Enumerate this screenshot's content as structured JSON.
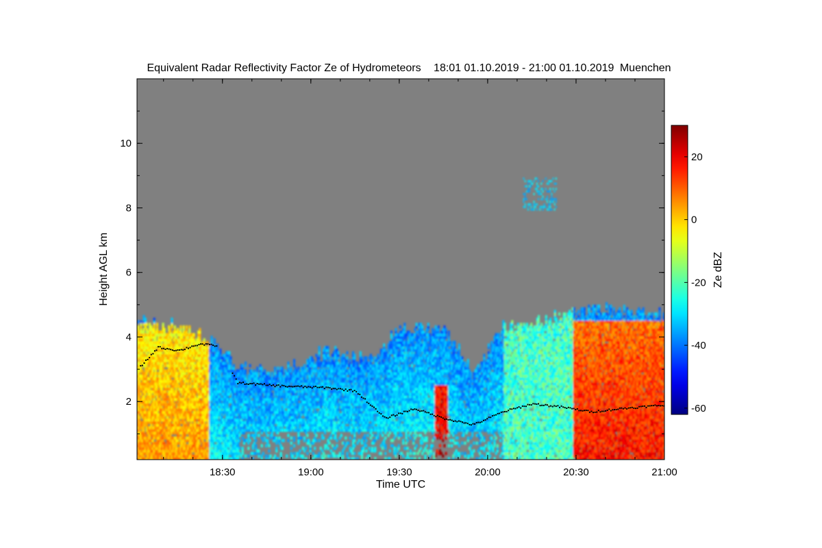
{
  "chart_data": {
    "type": "heatmap",
    "title": "Equivalent Radar Reflectivity Factor Ze of Hydrometeors",
    "time_range": "18:01 01.10.2019 - 21:00 01.10.2019",
    "location": "Muenchen",
    "xlabel": "Time UTC",
    "ylabel": "Height AGL km",
    "xlim": [
      "18:01",
      "21:00"
    ],
    "x_ticks": [
      "18:30",
      "19:00",
      "19:30",
      "20:00",
      "20:30",
      "21:00"
    ],
    "ylim": [
      0.2,
      12
    ],
    "y_ticks": [
      2,
      4,
      6,
      8,
      10
    ],
    "background_color": "#808080",
    "colorbar": {
      "label": "Ze dBZ",
      "range": [
        -62,
        30
      ],
      "ticks": [
        -60,
        -40,
        -20,
        0,
        20
      ],
      "colormap": "jet"
    },
    "echo_tops": [
      {
        "time": "18:01",
        "top_km": 4.4
      },
      {
        "time": "18:15",
        "top_km": 4.3
      },
      {
        "time": "18:28",
        "top_km": 3.7
      },
      {
        "time": "18:35",
        "top_km": 3.0
      },
      {
        "time": "18:50",
        "top_km": 2.9
      },
      {
        "time": "19:05",
        "top_km": 3.5
      },
      {
        "time": "19:20",
        "top_km": 3.2
      },
      {
        "time": "19:30",
        "top_km": 4.2
      },
      {
        "time": "19:45",
        "top_km": 4.2
      },
      {
        "time": "19:55",
        "top_km": 2.8
      },
      {
        "time": "20:05",
        "top_km": 4.3
      },
      {
        "time": "20:20",
        "top_km": 4.5
      },
      {
        "time": "20:40",
        "top_km": 4.8
      },
      {
        "time": "21:00",
        "top_km": 4.6
      }
    ],
    "cloud_base_heights": [
      {
        "time": "18:02",
        "height_km": 3.1
      },
      {
        "time": "18:08",
        "height_km": 3.7
      },
      {
        "time": "18:15",
        "height_km": 3.6
      },
      {
        "time": "18:22",
        "height_km": 3.8
      },
      {
        "time": "18:28",
        "height_km": 3.75
      },
      {
        "time": "18:35",
        "height_km": 2.6
      },
      {
        "time": "18:50",
        "height_km": 2.5
      },
      {
        "time": "19:05",
        "height_km": 2.45
      },
      {
        "time": "19:15",
        "height_km": 2.35
      },
      {
        "time": "19:25",
        "height_km": 1.5
      },
      {
        "time": "19:35",
        "height_km": 1.8
      },
      {
        "time": "19:45",
        "height_km": 1.5
      },
      {
        "time": "19:55",
        "height_km": 1.3
      },
      {
        "time": "20:05",
        "height_km": 1.7
      },
      {
        "time": "20:15",
        "height_km": 1.95
      },
      {
        "time": "20:25",
        "height_km": 1.85
      },
      {
        "time": "20:35",
        "height_km": 1.7
      },
      {
        "time": "20:45",
        "height_km": 1.8
      },
      {
        "time": "20:58",
        "height_km": 1.9
      }
    ],
    "features": [
      {
        "time_start": "18:01",
        "time_end": "18:25",
        "height_km": [
          0.2,
          4.4
        ],
        "ze_dbz": 5
      },
      {
        "time_start": "19:42",
        "time_end": "19:46",
        "height_km": [
          0.2,
          2.5
        ],
        "ze_dbz": 22
      },
      {
        "time_start": "20:29",
        "time_end": "21:00",
        "height_km": [
          0.2,
          4.5
        ],
        "ze_dbz": 18
      },
      {
        "time_start": "20:12",
        "time_end": "20:23",
        "height_km": [
          7.9,
          8.9
        ],
        "ze_dbz": -32
      }
    ]
  }
}
